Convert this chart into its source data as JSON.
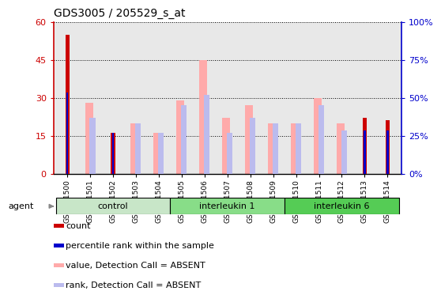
{
  "title": "GDS3005 / 205529_s_at",
  "samples": [
    "GSM211500",
    "GSM211501",
    "GSM211502",
    "GSM211503",
    "GSM211504",
    "GSM211505",
    "GSM211506",
    "GSM211507",
    "GSM211508",
    "GSM211509",
    "GSM211510",
    "GSM211511",
    "GSM211512",
    "GSM211513",
    "GSM211514"
  ],
  "count_values": [
    55,
    0,
    16,
    0,
    0,
    0,
    0,
    0,
    0,
    0,
    0,
    0,
    0,
    22,
    21
  ],
  "rank_values": [
    32,
    0,
    16,
    0,
    0,
    0,
    0,
    0,
    0,
    0,
    0,
    0,
    0,
    17,
    17
  ],
  "absent_value_values": [
    0,
    28,
    0,
    20,
    16,
    29,
    45,
    22,
    27,
    20,
    20,
    30,
    20,
    0,
    0
  ],
  "absent_rank_values": [
    0,
    22,
    0,
    20,
    16,
    27,
    31,
    16,
    22,
    20,
    20,
    27,
    17,
    0,
    0
  ],
  "groups": [
    {
      "label": "control",
      "start": 0,
      "end": 5,
      "color": "#c8e6c8"
    },
    {
      "label": "interleukin 1",
      "start": 5,
      "end": 10,
      "color": "#88dd88"
    },
    {
      "label": "interleukin 6",
      "start": 10,
      "end": 15,
      "color": "#55cc55"
    }
  ],
  "ylim_left": [
    0,
    60
  ],
  "ylim_right": [
    0,
    100
  ],
  "yticks_left": [
    0,
    15,
    30,
    45,
    60
  ],
  "ytick_labels_left": [
    "0",
    "15",
    "30",
    "45",
    "60"
  ],
  "yticks_right": [
    0,
    25,
    50,
    75,
    100
  ],
  "ytick_labels_right": [
    "0%",
    "25%",
    "50%",
    "75%",
    "100%"
  ],
  "color_count": "#cc0000",
  "color_rank": "#0000cc",
  "color_absent_value": "#ffaaaa",
  "color_absent_rank": "#bbbbee",
  "bg_color": "#e8e8e8",
  "legend_labels": [
    "count",
    "percentile rank within the sample",
    "value, Detection Call = ABSENT",
    "rank, Detection Call = ABSENT"
  ]
}
